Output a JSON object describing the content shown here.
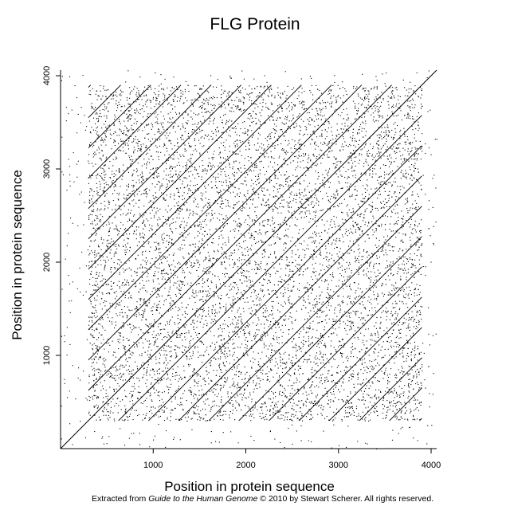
{
  "chart_data": {
    "type": "scatter",
    "subtype": "dot-plot (self-comparison)",
    "title": "FLG Protein",
    "xlabel": "Position in protein sequence",
    "ylabel": "Position in protein sequence",
    "xlim": [
      0,
      4060
    ],
    "ylim": [
      0,
      4060
    ],
    "x_ticks": [
      1000,
      2000,
      3000,
      4000
    ],
    "y_ticks": [
      1000,
      2000,
      3000,
      4000
    ],
    "grid": false,
    "legend": "none",
    "repeat_start": 300,
    "repeat_end": 3900,
    "repeat_period": 325,
    "main_diagonal": true,
    "dot_color": "#000000"
  },
  "footer": {
    "prefix": "Extracted from ",
    "book": "Guide to the Human Genome",
    "suffix": " © 2010 by Stewart Scherer.  All rights reserved."
  }
}
